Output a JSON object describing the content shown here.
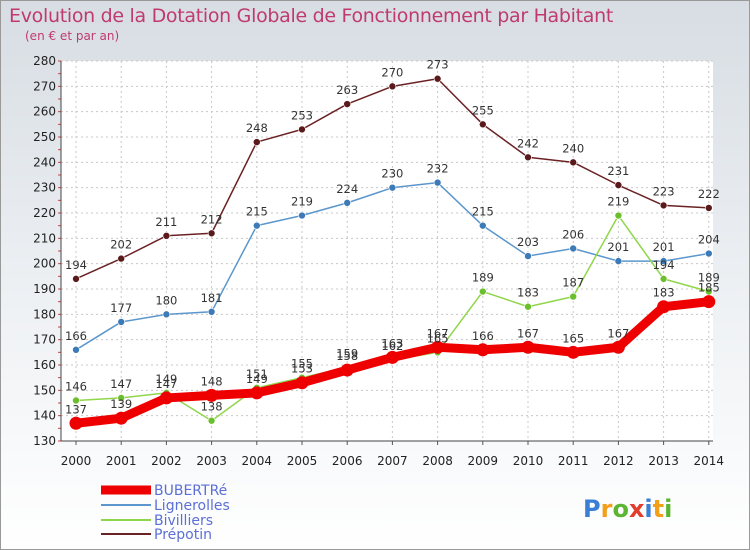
{
  "header": {
    "title": "Evolution de la Dotation Globale de Fonctionnement par Habitant",
    "subtitle": "(en € et par an)"
  },
  "logo": {
    "text": "Proxiti",
    "colors": [
      "#3a7fd5",
      "#f2a019",
      "#5bb531",
      "#e23c2c",
      "#3a7fd5",
      "#f2a019",
      "#5bb531"
    ]
  },
  "chart_data": {
    "type": "line",
    "title": "Evolution de la Dotation Globale de Fonctionnement par Habitant",
    "subtitle": "(en € et par an)",
    "x": [
      "2000",
      "2001",
      "2002",
      "2003",
      "2004",
      "2005",
      "2006",
      "2007",
      "2008",
      "2009",
      "2010",
      "2011",
      "2012",
      "2013",
      "2014"
    ],
    "ylim": [
      130,
      280
    ],
    "yticks": [
      130,
      140,
      150,
      160,
      170,
      180,
      190,
      200,
      210,
      220,
      230,
      240,
      250,
      260,
      270,
      280
    ],
    "grid": true,
    "legend_position": "bottom-left",
    "series": [
      {
        "name": "BUBERTRé",
        "color": "#ee0000",
        "values": [
          137,
          139,
          147,
          148,
          149,
          153,
          158,
          163,
          167,
          166,
          167,
          165,
          167,
          183,
          185
        ]
      },
      {
        "name": "Lignerolles",
        "color": "#5b96cc",
        "values": [
          166,
          177,
          180,
          181,
          215,
          219,
          224,
          230,
          232,
          215,
          203,
          206,
          201,
          201,
          204
        ]
      },
      {
        "name": "Bivilliers",
        "color": "#8fd64a",
        "values": [
          146,
          147,
          149,
          138,
          151,
          155,
          159,
          162,
          165,
          189,
          183,
          187,
          219,
          194,
          189
        ]
      },
      {
        "name": "Prépotin",
        "color": "#6b2224",
        "values": [
          194,
          202,
          211,
          212,
          248,
          253,
          263,
          270,
          273,
          255,
          242,
          240,
          231,
          223,
          222
        ]
      }
    ]
  }
}
